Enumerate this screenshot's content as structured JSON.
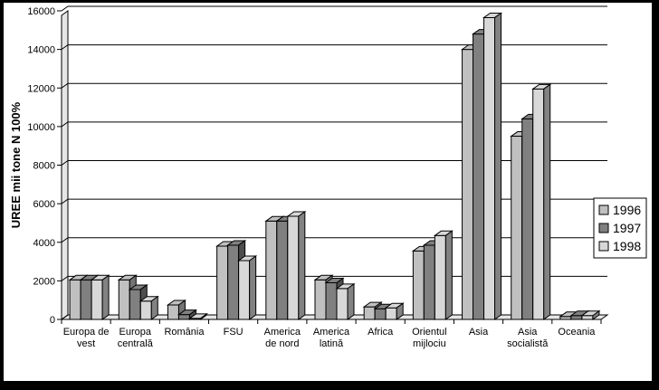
{
  "chart_data": {
    "type": "bar",
    "ylabel": "UREE mii tone  N 100%",
    "ylim": [
      0,
      16000
    ],
    "yticks": [
      "0",
      "2000",
      "4000",
      "6000",
      "8000",
      "10000",
      "12000",
      "14000",
      "16000"
    ],
    "grid": true,
    "legend": "right",
    "categories": [
      [
        "Europa de",
        "vest"
      ],
      [
        "Europa",
        "centrală"
      ],
      [
        "România"
      ],
      [
        "FSU"
      ],
      [
        "America",
        "de nord"
      ],
      [
        "America",
        "latină"
      ],
      [
        "Africa"
      ],
      [
        "Orientul",
        "mijlociu"
      ],
      [
        "Asia"
      ],
      [
        "Asia",
        "socialistă"
      ],
      [
        "Oceania"
      ]
    ],
    "series": [
      {
        "name": "1996",
        "color": "#c0c0c0",
        "values": [
          2050,
          2050,
          750,
          3800,
          5100,
          2050,
          650,
          3550,
          14000,
          9500,
          150
        ]
      },
      {
        "name": "1997",
        "color": "#808080",
        "values": [
          2050,
          1550,
          250,
          3850,
          5100,
          1900,
          550,
          3850,
          14800,
          10400,
          200
        ]
      },
      {
        "name": "1998",
        "color": "#d8d8d8",
        "values": [
          2050,
          950,
          50,
          3050,
          5350,
          1600,
          600,
          4350,
          15650,
          11950,
          200
        ]
      }
    ]
  }
}
